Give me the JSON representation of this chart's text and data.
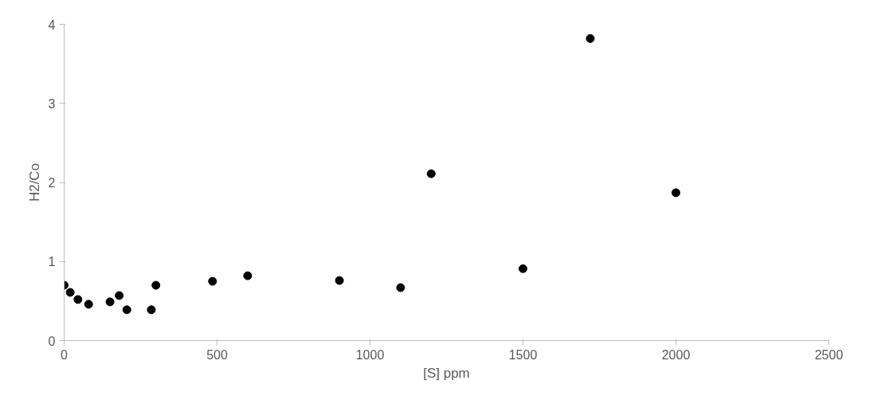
{
  "chart_data": {
    "type": "scatter",
    "xlabel": "[S] ppm",
    "ylabel": "H2/Co",
    "x": [
      0,
      20,
      45,
      80,
      150,
      180,
      205,
      285,
      300,
      485,
      600,
      900,
      1100,
      1200,
      1500,
      1720,
      2000
    ],
    "series": [
      {
        "color": "#000000",
        "values": [
          0.7,
          0.61,
          0.52,
          0.46,
          0.49,
          0.57,
          0.39,
          0.39,
          0.7,
          0.75,
          0.82,
          0.76,
          0.67,
          2.11,
          0.91,
          3.82,
          1.87
        ]
      }
    ],
    "xlim": [
      0,
      2500
    ],
    "xticks": [
      0,
      500,
      1000,
      1500,
      2000,
      2500
    ],
    "ylim": [
      0,
      4
    ],
    "yticks": [
      0,
      1,
      2,
      3,
      4
    ],
    "grid": false,
    "marker": "circle"
  }
}
